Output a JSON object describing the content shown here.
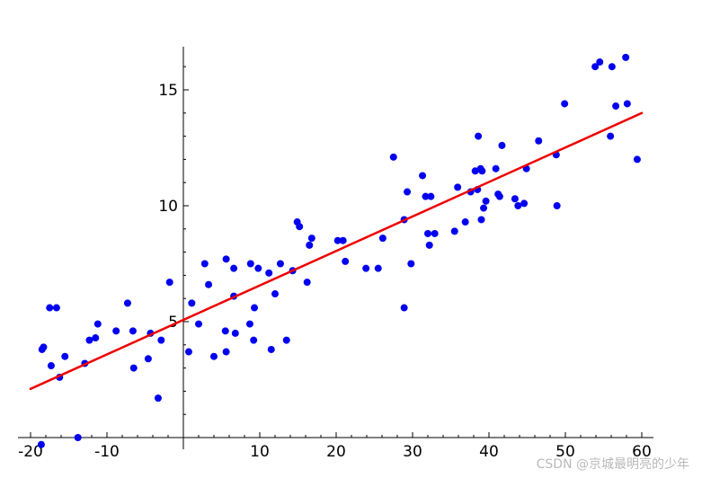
{
  "chart_data": {
    "type": "scatter",
    "title": "",
    "xlabel": "",
    "ylabel": "",
    "xlim": [
      -20,
      60
    ],
    "ylim": [
      0,
      16.8
    ],
    "grid": false,
    "x_ticks": [
      -20,
      -10,
      0,
      10,
      20,
      30,
      40,
      50,
      60
    ],
    "x_tick_labels": [
      "-20",
      "-10",
      "",
      "10",
      "20",
      "30",
      "40",
      "50",
      "60"
    ],
    "y_ticks": [
      5,
      10,
      15
    ],
    "y_tick_labels": [
      "5",
      "10",
      "15"
    ],
    "series": [
      {
        "type": "scatter",
        "color": "#0000ee",
        "points": [
          [
            -18.5,
            3.8
          ],
          [
            -18.3,
            3.9
          ],
          [
            -17.5,
            5.6
          ],
          [
            -16.6,
            5.6
          ],
          [
            -17.3,
            3.1
          ],
          [
            -16.2,
            2.6
          ],
          [
            -15.5,
            3.5
          ],
          [
            -13.8,
            0.0
          ],
          [
            -18.6,
            -0.3
          ],
          [
            -12.9,
            3.2
          ],
          [
            -12.3,
            4.2
          ],
          [
            -11.5,
            4.3
          ],
          [
            -11.2,
            4.9
          ],
          [
            -8.8,
            4.6
          ],
          [
            -7.3,
            5.8
          ],
          [
            -6.6,
            4.6
          ],
          [
            -6.5,
            3.0
          ],
          [
            -4.6,
            3.4
          ],
          [
            -4.3,
            4.5
          ],
          [
            -3.3,
            1.7
          ],
          [
            -2.9,
            4.2
          ],
          [
            -1.8,
            6.7
          ],
          [
            0.7,
            3.7
          ],
          [
            1.1,
            5.8
          ],
          [
            2.0,
            4.9
          ],
          [
            2.8,
            7.5
          ],
          [
            3.3,
            6.6
          ],
          [
            4.0,
            3.5
          ],
          [
            5.5,
            4.6
          ],
          [
            5.6,
            3.7
          ],
          [
            5.6,
            7.7
          ],
          [
            6.6,
            7.3
          ],
          [
            6.6,
            6.1
          ],
          [
            6.8,
            4.5
          ],
          [
            8.7,
            4.9
          ],
          [
            8.8,
            7.5
          ],
          [
            9.2,
            4.2
          ],
          [
            9.3,
            5.6
          ],
          [
            9.8,
            7.3
          ],
          [
            11.2,
            7.1
          ],
          [
            11.5,
            3.8
          ],
          [
            12.0,
            6.2
          ],
          [
            12.7,
            7.5
          ],
          [
            13.5,
            4.2
          ],
          [
            14.3,
            7.2
          ],
          [
            14.9,
            9.3
          ],
          [
            15.2,
            9.1
          ],
          [
            16.2,
            6.7
          ],
          [
            16.5,
            8.3
          ],
          [
            16.8,
            8.6
          ],
          [
            20.2,
            8.5
          ],
          [
            20.9,
            8.5
          ],
          [
            21.2,
            7.6
          ],
          [
            23.9,
            7.3
          ],
          [
            25.5,
            7.3
          ],
          [
            26.1,
            8.6
          ],
          [
            27.5,
            12.1
          ],
          [
            28.9,
            5.6
          ],
          [
            28.9,
            9.4
          ],
          [
            29.3,
            10.6
          ],
          [
            29.8,
            7.5
          ],
          [
            31.3,
            11.3
          ],
          [
            31.7,
            10.4
          ],
          [
            32.0,
            8.8
          ],
          [
            32.2,
            8.3
          ],
          [
            32.4,
            10.4
          ],
          [
            32.9,
            8.8
          ],
          [
            35.5,
            8.9
          ],
          [
            35.9,
            10.8
          ],
          [
            36.9,
            9.3
          ],
          [
            37.6,
            10.6
          ],
          [
            38.2,
            11.5
          ],
          [
            38.5,
            10.7
          ],
          [
            38.6,
            13.0
          ],
          [
            38.9,
            11.6
          ],
          [
            39.0,
            9.4
          ],
          [
            39.1,
            11.5
          ],
          [
            39.3,
            9.9
          ],
          [
            39.6,
            10.2
          ],
          [
            40.9,
            11.6
          ],
          [
            41.2,
            10.5
          ],
          [
            41.4,
            10.4
          ],
          [
            41.7,
            12.6
          ],
          [
            43.4,
            10.3
          ],
          [
            43.8,
            10.0
          ],
          [
            44.6,
            10.1
          ],
          [
            44.9,
            11.6
          ],
          [
            46.5,
            12.8
          ],
          [
            48.8,
            12.2
          ],
          [
            48.9,
            10.0
          ],
          [
            49.9,
            14.4
          ],
          [
            53.9,
            16.0
          ],
          [
            54.5,
            16.2
          ],
          [
            55.9,
            13.0
          ],
          [
            56.1,
            16.0
          ],
          [
            56.6,
            14.3
          ],
          [
            57.9,
            16.4
          ],
          [
            58.1,
            14.4
          ],
          [
            59.4,
            12.0
          ]
        ]
      },
      {
        "type": "line",
        "color": "#ee0000",
        "points": [
          [
            -20,
            2.1
          ],
          [
            60,
            14.0
          ]
        ]
      }
    ]
  },
  "watermark": "CSDN @京城最明亮的少年"
}
